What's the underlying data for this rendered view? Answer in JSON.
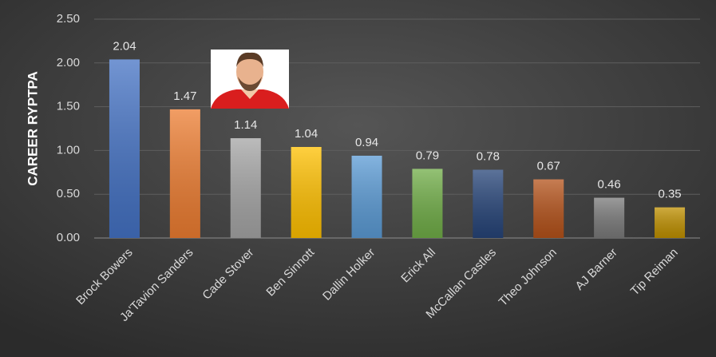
{
  "chart_data": {
    "type": "bar",
    "y_label": "CAREER RYPTPA",
    "categories": [
      "Brock Bowers",
      "Ja'Tavion Sanders",
      "Cade Stover",
      "Ben Sinnott",
      "Dallin Holker",
      "Erick All",
      "McCallan Castles",
      "Theo Johnson",
      "AJ Barner",
      "Tip Reiman"
    ],
    "values": [
      2.04,
      1.47,
      1.14,
      1.04,
      0.94,
      0.79,
      0.78,
      0.67,
      0.46,
      0.35
    ],
    "colors": [
      "#4472c4",
      "#ed7d31",
      "#a5a5a5",
      "#ffc000",
      "#5b9bd5",
      "#70ad47",
      "#264478",
      "#b4521a",
      "#7a7a7a",
      "#bf9000"
    ],
    "ylim": [
      0,
      2.5
    ],
    "yticks": [
      {
        "value": 0,
        "label": "0.00"
      },
      {
        "value": 0.5,
        "label": "0.50"
      },
      {
        "value": 1,
        "label": "1.00"
      },
      {
        "value": 1.5,
        "label": "1.50"
      },
      {
        "value": 2,
        "label": "2.00"
      },
      {
        "value": 2.5,
        "label": "2.50"
      }
    ],
    "grid": true
  }
}
